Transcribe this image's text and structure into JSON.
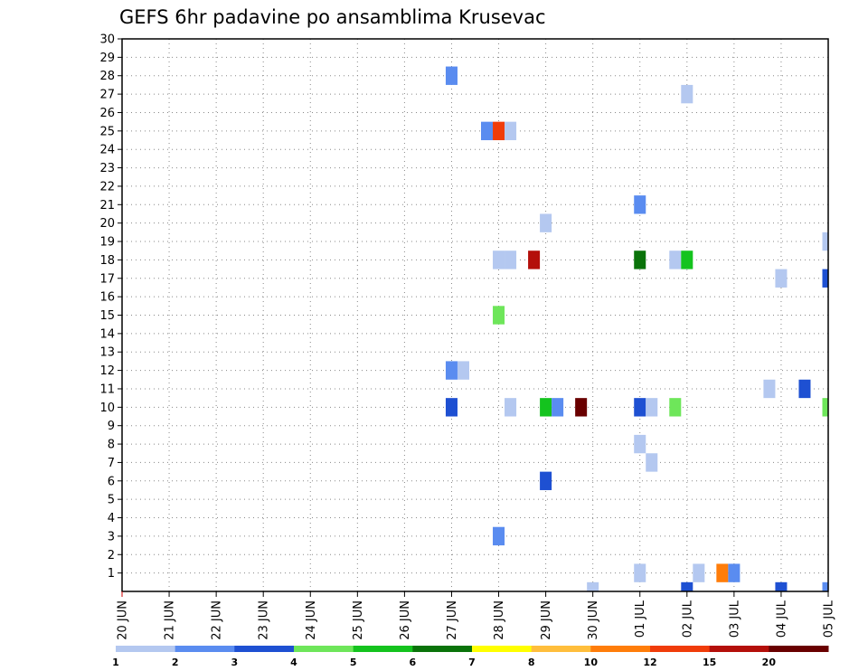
{
  "colors": {
    "c1": "#b4c8f0",
    "c2": "#5a8cf0",
    "c3": "#1e50d2",
    "c4": "#6ee65a",
    "c5": "#14c31e",
    "c6": "#0a730a",
    "c7": "#ffff00",
    "c8": "#ffbe3c",
    "c10": "#ff7d0a",
    "c12": "#f03c0a",
    "c15": "#b40f0a",
    "c20": "#690000"
  },
  "chart_data": {
    "type": "heatmap",
    "title": "GEFS 6hr padavine po ansamblima Krusevac",
    "xlabel": "",
    "ylabel": "",
    "x_tick_labels": [
      "20 JUN",
      "21 JUN",
      "22 JUN",
      "23 JUN",
      "24 JUN",
      "25 JUN",
      "26 JUN",
      "27 JUN",
      "28 JUN",
      "29 JUN",
      "30 JUN",
      "01 JUL",
      "02 JUL",
      "03 JUL",
      "04 JUL",
      "05 JUL"
    ],
    "x_range": [
      "20 JUN 00Z",
      "05 JUL 00Z"
    ],
    "y_range": [
      0,
      30
    ],
    "y_ticks": [
      1,
      2,
      3,
      4,
      5,
      6,
      7,
      8,
      9,
      10,
      11,
      12,
      13,
      14,
      15,
      16,
      17,
      18,
      19,
      20,
      21,
      22,
      23,
      24,
      25,
      26,
      27,
      28,
      29,
      30
    ],
    "grid": true,
    "legend_position": "bottom",
    "colorbar": {
      "labels": [
        "1",
        "2",
        "3",
        "4",
        "5",
        "6",
        "7",
        "8",
        "10",
        "12",
        "15",
        "20"
      ],
      "colors": [
        "#b4c8f0",
        "#5a8cf0",
        "#1e50d2",
        "#6ee65a",
        "#14c31e",
        "#0a730a",
        "#ffff00",
        "#ffbe3c",
        "#ff7d0a",
        "#f03c0a",
        "#b40f0a",
        "#690000"
      ]
    },
    "cells": [
      {
        "time": "27 JUN 00Z",
        "member": 28,
        "color": "#5a8cf0"
      },
      {
        "time": "02 JUL 00Z",
        "member": 27,
        "color": "#b4c8f0"
      },
      {
        "time": "27 JUN 18Z",
        "member": 25,
        "color": "#5a8cf0"
      },
      {
        "time": "28 JUN 00Z",
        "member": 25,
        "color": "#f03c0a"
      },
      {
        "time": "28 JUN 06Z",
        "member": 25,
        "color": "#b4c8f0"
      },
      {
        "time": "01 JUL 00Z",
        "member": 21,
        "color": "#5a8cf0"
      },
      {
        "time": "29 JUN 00Z",
        "member": 20,
        "color": "#b4c8f0"
      },
      {
        "time": "05 JUL 00Z",
        "member": 19,
        "color": "#b4c8f0"
      },
      {
        "time": "28 JUN 00Z",
        "member": 18,
        "color": "#b4c8f0"
      },
      {
        "time": "28 JUN 06Z",
        "member": 18,
        "color": "#b4c8f0"
      },
      {
        "time": "28 JUN 18Z",
        "member": 18,
        "color": "#b40f0a"
      },
      {
        "time": "01 JUL 00Z",
        "member": 18,
        "color": "#0a730a"
      },
      {
        "time": "01 JUL 18Z",
        "member": 18,
        "color": "#b4c8f0"
      },
      {
        "time": "02 JUL 00Z",
        "member": 18,
        "color": "#14c31e"
      },
      {
        "time": "04 JUL 00Z",
        "member": 17,
        "color": "#b4c8f0"
      },
      {
        "time": "05 JUL 00Z",
        "member": 17,
        "color": "#1e50d2"
      },
      {
        "time": "28 JUN 00Z",
        "member": 15,
        "color": "#6ee65a"
      },
      {
        "time": "27 JUN 00Z",
        "member": 12,
        "color": "#5a8cf0"
      },
      {
        "time": "27 JUN 06Z",
        "member": 12,
        "color": "#b4c8f0"
      },
      {
        "time": "03 JUL 18Z",
        "member": 11,
        "color": "#b4c8f0"
      },
      {
        "time": "04 JUL 12Z",
        "member": 11,
        "color": "#1e50d2"
      },
      {
        "time": "27 JUN 00Z",
        "member": 10,
        "color": "#1e50d2"
      },
      {
        "time": "28 JUN 06Z",
        "member": 10,
        "color": "#b4c8f0"
      },
      {
        "time": "29 JUN 00Z",
        "member": 10,
        "color": "#14c31e"
      },
      {
        "time": "29 JUN 06Z",
        "member": 10,
        "color": "#5a8cf0"
      },
      {
        "time": "29 JUN 18Z",
        "member": 10,
        "color": "#690000"
      },
      {
        "time": "01 JUL 00Z",
        "member": 10,
        "color": "#1e50d2"
      },
      {
        "time": "01 JUL 06Z",
        "member": 10,
        "color": "#b4c8f0"
      },
      {
        "time": "01 JUL 18Z",
        "member": 10,
        "color": "#6ee65a"
      },
      {
        "time": "05 JUL 00Z",
        "member": 10,
        "color": "#6ee65a"
      },
      {
        "time": "01 JUL 00Z",
        "member": 8,
        "color": "#b4c8f0"
      },
      {
        "time": "01 JUL 06Z",
        "member": 7,
        "color": "#b4c8f0"
      },
      {
        "time": "29 JUN 00Z",
        "member": 6,
        "color": "#1e50d2"
      },
      {
        "time": "28 JUN 00Z",
        "member": 3,
        "color": "#5a8cf0"
      },
      {
        "time": "01 JUL 00Z",
        "member": 1,
        "color": "#b4c8f0"
      },
      {
        "time": "02 JUL 06Z",
        "member": 1,
        "color": "#b4c8f0"
      },
      {
        "time": "02 JUL 18Z",
        "member": 1,
        "color": "#ff7d0a"
      },
      {
        "time": "03 JUL 00Z",
        "member": 1,
        "color": "#5a8cf0"
      },
      {
        "time": "30 JUN 00Z",
        "member": 0,
        "color": "#b4c8f0"
      },
      {
        "time": "02 JUL 00Z",
        "member": 0,
        "color": "#1e50d2"
      },
      {
        "time": "04 JUL 00Z",
        "member": 0,
        "color": "#1e50d2"
      },
      {
        "time": "05 JUL 00Z",
        "member": 0,
        "color": "#5a8cf0"
      }
    ]
  }
}
